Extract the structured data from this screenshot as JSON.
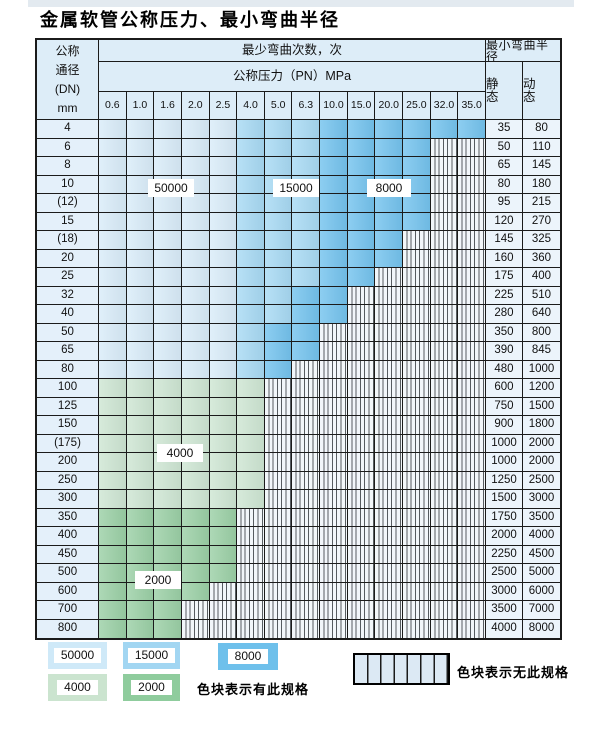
{
  "page": {
    "title": "金属软管公称压力、最小弯曲半径"
  },
  "palette": {
    "blue-light": "#d9ecf9",
    "blue-mid": "#a8daf4",
    "blue-dark": "#74c3ee",
    "green-light": "#cee6d3",
    "green-mid": "#9bd0a6",
    "header-bg": "#ddedf8",
    "dn-bg": "#e4f0fa",
    "radius-bg": "#ecf4fb",
    "stripe-bg": "#f2f6fa",
    "stripe-line": "#565b60",
    "grid-line": "#1b1b1b",
    "legend-50000": "#cfe9f8",
    "legend-15000": "#a2d6f2",
    "legend-8000": "#6ec0eb",
    "legend-4000": "#cbe4cf",
    "legend-2000": "#8fcc9d"
  },
  "table": {
    "dn_header_lines": [
      "公称",
      "通径",
      "(DN)",
      "mm"
    ],
    "cycles_header": "最少弯曲次数，次",
    "pressure_header": "公称压力（PN）MPa",
    "radius_header": "最小弯曲半径",
    "static_header": "静 态",
    "dynamic_header": "动 态",
    "pressure_columns": [
      "0.6",
      "1.0",
      "1.6",
      "2.0",
      "2.5",
      "4.0",
      "5.0",
      "6.3",
      "10.0",
      "15.0",
      "20.0",
      "25.0",
      "32.0",
      "35.0"
    ],
    "shade_meaning": {
      "0": "50000 cycles",
      "1": "15000 cycles",
      "2": "8000 cycles",
      "3": "4000 cycles",
      "4": "2000 cycles",
      "-": "no spec (striped)"
    },
    "rows": [
      {
        "dn": "4",
        "cells": "00000111222222",
        "static": "35",
        "dynamic": "80"
      },
      {
        "dn": "6",
        "cells": "000001112222--",
        "static": "50",
        "dynamic": "110"
      },
      {
        "dn": "8",
        "cells": "000001112222--",
        "static": "65",
        "dynamic": "145"
      },
      {
        "dn": "10",
        "cells": "000001112222--",
        "static": "80",
        "dynamic": "180"
      },
      {
        "dn": "(12)",
        "cells": "000001112222--",
        "static": "95",
        "dynamic": "215"
      },
      {
        "dn": "15",
        "cells": "000001112222--",
        "static": "120",
        "dynamic": "270"
      },
      {
        "dn": "(18)",
        "cells": "00000111222---",
        "static": "145",
        "dynamic": "325"
      },
      {
        "dn": "20",
        "cells": "00000111222---",
        "static": "160",
        "dynamic": "360"
      },
      {
        "dn": "25",
        "cells": "0000011122----",
        "static": "175",
        "dynamic": "400"
      },
      {
        "dn": "32",
        "cells": "000001122-----",
        "static": "225",
        "dynamic": "510"
      },
      {
        "dn": "40",
        "cells": "000001122-----",
        "static": "280",
        "dynamic": "640"
      },
      {
        "dn": "50",
        "cells": "00000122------",
        "static": "350",
        "dynamic": "800"
      },
      {
        "dn": "65",
        "cells": "00000122------",
        "static": "390",
        "dynamic": "845"
      },
      {
        "dn": "80",
        "cells": "0000012-------",
        "static": "480",
        "dynamic": "1000"
      },
      {
        "dn": "100",
        "cells": "333333--------",
        "static": "600",
        "dynamic": "1200"
      },
      {
        "dn": "125",
        "cells": "333333--------",
        "static": "750",
        "dynamic": "1500"
      },
      {
        "dn": "150",
        "cells": "333333--------",
        "static": "900",
        "dynamic": "1800"
      },
      {
        "dn": "(175)",
        "cells": "333333--------",
        "static": "1000",
        "dynamic": "2000"
      },
      {
        "dn": "200",
        "cells": "333333--------",
        "static": "1000",
        "dynamic": "2000"
      },
      {
        "dn": "250",
        "cells": "333333--------",
        "static": "1250",
        "dynamic": "2500"
      },
      {
        "dn": "300",
        "cells": "333333--------",
        "static": "1500",
        "dynamic": "3000"
      },
      {
        "dn": "350",
        "cells": "44444---------",
        "static": "1750",
        "dynamic": "3500"
      },
      {
        "dn": "400",
        "cells": "44444---------",
        "static": "2000",
        "dynamic": "4000"
      },
      {
        "dn": "450",
        "cells": "44444---------",
        "static": "2250",
        "dynamic": "4500"
      },
      {
        "dn": "500",
        "cells": "44444---------",
        "static": "2500",
        "dynamic": "5000"
      },
      {
        "dn": "600",
        "cells": "4444----------",
        "static": "3000",
        "dynamic": "6000"
      },
      {
        "dn": "700",
        "cells": "444-----------",
        "static": "3500",
        "dynamic": "7000"
      },
      {
        "dn": "800",
        "cells": "444-----------",
        "static": "4000",
        "dynamic": "8000"
      }
    ],
    "overlays": [
      {
        "id": "50000",
        "text": "50000"
      },
      {
        "id": "15000",
        "text": "15000"
      },
      {
        "id": "8000",
        "text": "8000"
      },
      {
        "id": "4000",
        "text": "4000"
      },
      {
        "id": "2000",
        "text": "2000"
      }
    ]
  },
  "legend": {
    "available_label": "色块表示有此规格",
    "unavailable_label": "色块表示无此规格",
    "swatches": [
      {
        "value": "50000",
        "color_key": "legend-50000"
      },
      {
        "value": "15000",
        "color_key": "legend-15000"
      },
      {
        "value": "8000",
        "color_key": "legend-8000"
      },
      {
        "value": "4000",
        "color_key": "legend-4000"
      },
      {
        "value": "2000",
        "color_key": "legend-2000"
      }
    ]
  }
}
